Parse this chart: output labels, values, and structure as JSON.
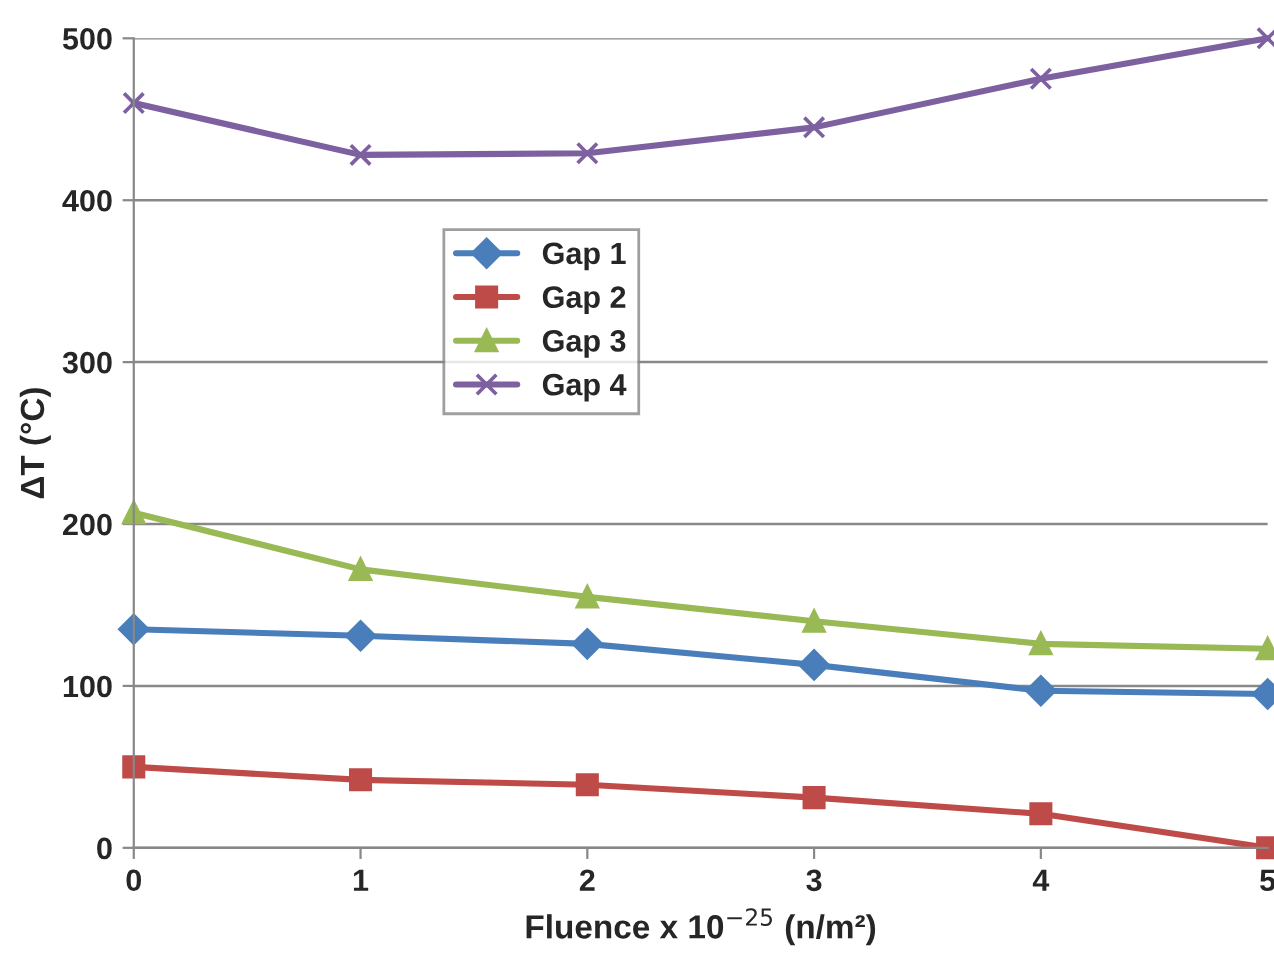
{
  "chart_data": {
    "type": "line",
    "xlabel": "Fluence x 10$^{−25}$ (n/m²)",
    "ylabel": "ΔT (°C)",
    "x": [
      0,
      1,
      2,
      3,
      4,
      5
    ],
    "xlim": [
      0,
      5
    ],
    "xticks": [
      0,
      1,
      2,
      3,
      4,
      5
    ],
    "ylim": [
      0,
      500
    ],
    "yticks": [
      0,
      100,
      200,
      300,
      400,
      500
    ],
    "grid": "y",
    "legend": "center left",
    "series": [
      {
        "name": "Gap 1",
        "color": "#4a7ebb",
        "marker": "diamond",
        "values": [
          135,
          131,
          126,
          113,
          97,
          95
        ]
      },
      {
        "name": "Gap 2",
        "color": "#be4b48",
        "marker": "square",
        "values": [
          50,
          42,
          39,
          31,
          21,
          0
        ]
      },
      {
        "name": "Gap 3",
        "color": "#98b954",
        "marker": "triangle",
        "values": [
          207,
          172,
          155,
          140,
          126,
          123
        ]
      },
      {
        "name": "Gap 4",
        "color": "#7d60a0",
        "marker": "cross",
        "values": [
          460,
          428,
          429,
          445,
          475,
          500
        ]
      }
    ]
  }
}
